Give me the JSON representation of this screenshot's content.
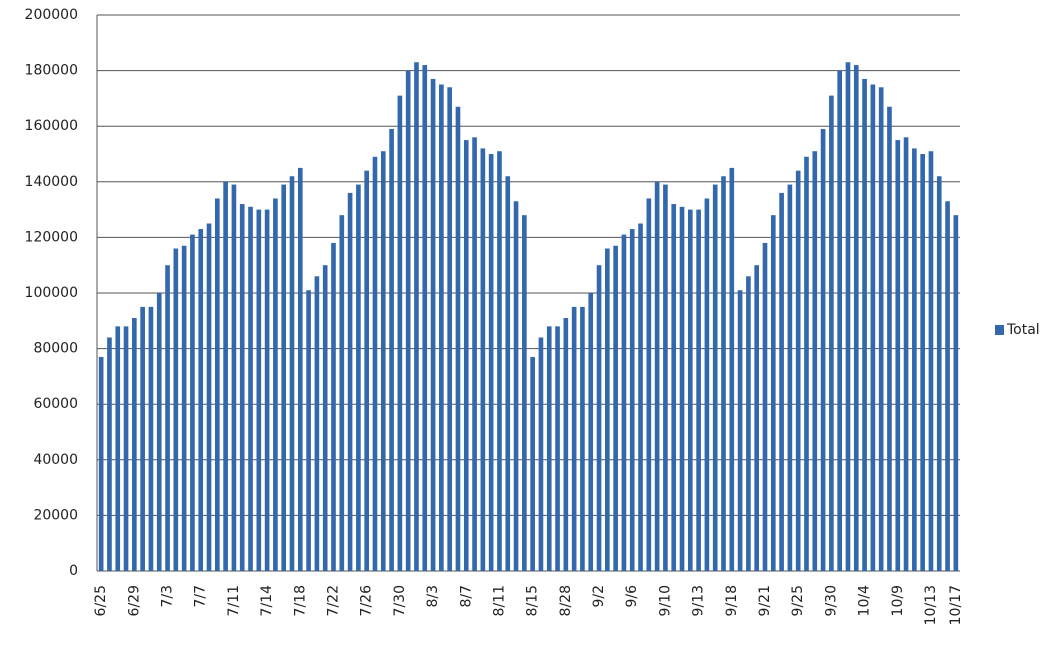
{
  "chart_data": {
    "type": "bar",
    "categories": [
      "6/25",
      null,
      null,
      null,
      "6/29",
      null,
      null,
      null,
      "7/3",
      null,
      null,
      null,
      "7/7",
      null,
      null,
      null,
      "7/11",
      null,
      null,
      null,
      "7/14",
      null,
      null,
      null,
      "7/18",
      null,
      null,
      null,
      "7/22",
      null,
      null,
      null,
      "7/26",
      null,
      null,
      null,
      "7/30",
      null,
      null,
      null,
      "8/3",
      null,
      null,
      null,
      "8/7",
      null,
      null,
      null,
      "8/11",
      null,
      null,
      null,
      "8/15",
      null,
      null,
      null,
      "8/28",
      null,
      null,
      null,
      "9/2",
      null,
      null,
      null,
      "9/6",
      null,
      null,
      null,
      "9/10",
      null,
      null,
      null,
      "9/13",
      null,
      null,
      null,
      "9/18",
      null,
      null,
      null,
      "9/21",
      null,
      null,
      null,
      "9/25",
      null,
      null,
      null,
      "9/30",
      null,
      null,
      null,
      "10/4",
      null,
      null,
      null,
      "10/9",
      null,
      null,
      null,
      "10/13",
      null,
      null,
      "10/17"
    ],
    "series": [
      {
        "name": "Total",
        "color": "#3468ad",
        "values": [
          77000,
          84000,
          88000,
          88000,
          91000,
          95000,
          95000,
          100000,
          110000,
          116000,
          117000,
          121000,
          123000,
          125000,
          134000,
          140000,
          139000,
          132000,
          131000,
          130000,
          130000,
          134000,
          139000,
          142000,
          145000,
          101000,
          106000,
          110000,
          118000,
          128000,
          136000,
          139000,
          144000,
          149000,
          151000,
          159000,
          171000,
          180000,
          183000,
          182000,
          177000,
          175000,
          174000,
          167000,
          155000,
          156000,
          152000,
          150000,
          151000,
          142000,
          133000,
          128000,
          77000,
          84000,
          88000,
          88000,
          91000,
          95000,
          95000,
          100000,
          110000,
          116000,
          117000,
          121000,
          123000,
          125000,
          134000,
          140000,
          139000,
          132000,
          131000,
          130000,
          130000,
          134000,
          139000,
          142000,
          145000,
          101000,
          106000,
          110000,
          118000,
          128000,
          136000,
          139000,
          144000,
          149000,
          151000,
          159000,
          171000,
          180000,
          183000,
          182000,
          177000,
          175000,
          174000,
          167000,
          155000,
          156000,
          152000,
          150000,
          151000,
          142000,
          133000,
          128000
        ]
      }
    ],
    "ylim": [
      0,
      200000
    ],
    "yticks": [
      0,
      20000,
      40000,
      60000,
      80000,
      100000,
      120000,
      140000,
      160000,
      180000,
      200000
    ],
    "grid": true,
    "legend": "right"
  }
}
